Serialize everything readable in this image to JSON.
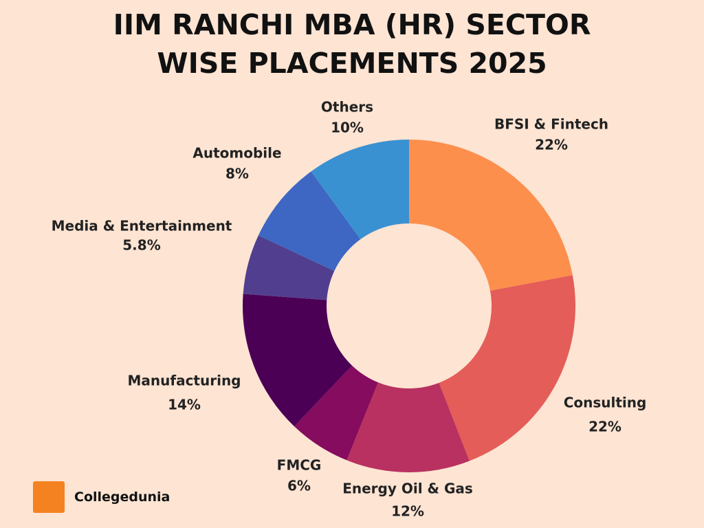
{
  "chart_data": {
    "type": "donut",
    "title": "IIM RANCHI MBA (HR) SECTOR WISE PLACEMENTS 2025",
    "categories": [
      "BFSI & Fintech",
      "Consulting",
      "Energy Oil & Gas",
      "FMCG",
      "Manufacturing",
      "Media & Entertainment",
      "Automobile",
      "Others"
    ],
    "values": [
      22,
      22,
      12,
      6,
      14,
      5.8,
      8,
      10
    ],
    "value_labels": [
      "22%",
      "22%",
      "12%",
      "6%",
      "14%",
      "5.8%",
      "8%",
      "10%"
    ],
    "colors": [
      "#fd8f4d",
      "#e45d58",
      "#b93160",
      "#850c5e",
      "#4b0055",
      "#513e8f",
      "#3d67c2",
      "#3a91d1"
    ]
  },
  "brand": "Collegedunia"
}
